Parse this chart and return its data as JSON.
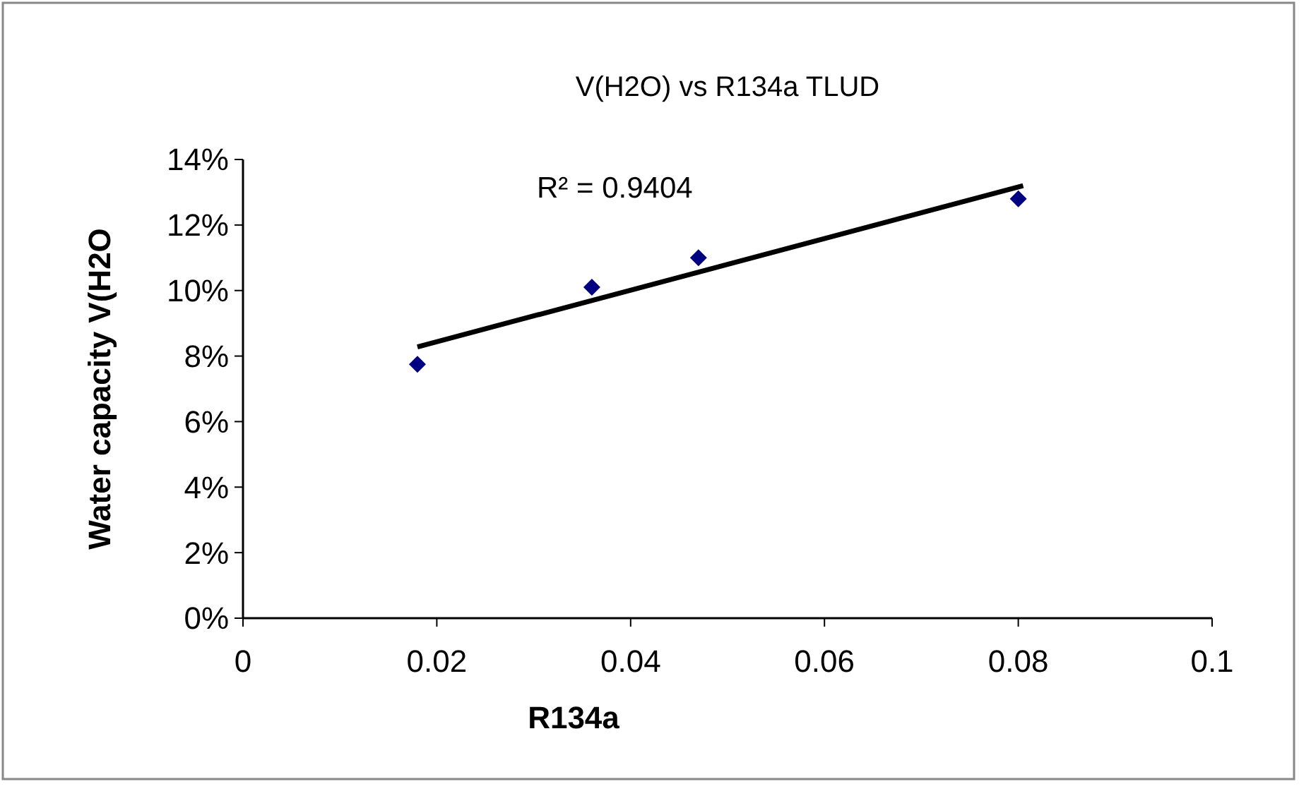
{
  "chart_data": {
    "type": "scatter",
    "title": "V(H2O) vs R134a TLUD",
    "xlabel": "R134a",
    "ylabel": "Water capacity V(H2O",
    "xlim": [
      0,
      0.1
    ],
    "xticks": [
      0,
      0.02,
      0.04,
      0.06,
      0.08,
      0.1
    ],
    "ylim": [
      0,
      0.14
    ],
    "yticks": [
      {
        "value": 0,
        "label": "0%"
      },
      {
        "value": 0.02,
        "label": "2%"
      },
      {
        "value": 0.04,
        "label": "4%"
      },
      {
        "value": 0.06,
        "label": "6%"
      },
      {
        "value": 0.08,
        "label": "8%"
      },
      {
        "value": 0.1,
        "label": "10%"
      },
      {
        "value": 0.12,
        "label": "12%"
      },
      {
        "value": 0.14,
        "label": "14%"
      }
    ],
    "grid": false,
    "marker": "diamond",
    "annotations": [
      "R² = 0.9404"
    ],
    "series": [
      {
        "color": "#000080",
        "x": [
          0.018,
          0.036,
          0.047,
          0.08
        ],
        "values": [
          0.0775,
          0.101,
          0.11,
          0.128
        ]
      },
      {
        "type": "line",
        "color": "#000000",
        "marker": "none",
        "line_style": "solid",
        "x": [
          0.018,
          0.0805
        ],
        "values": [
          0.0828,
          0.132
        ]
      }
    ]
  }
}
